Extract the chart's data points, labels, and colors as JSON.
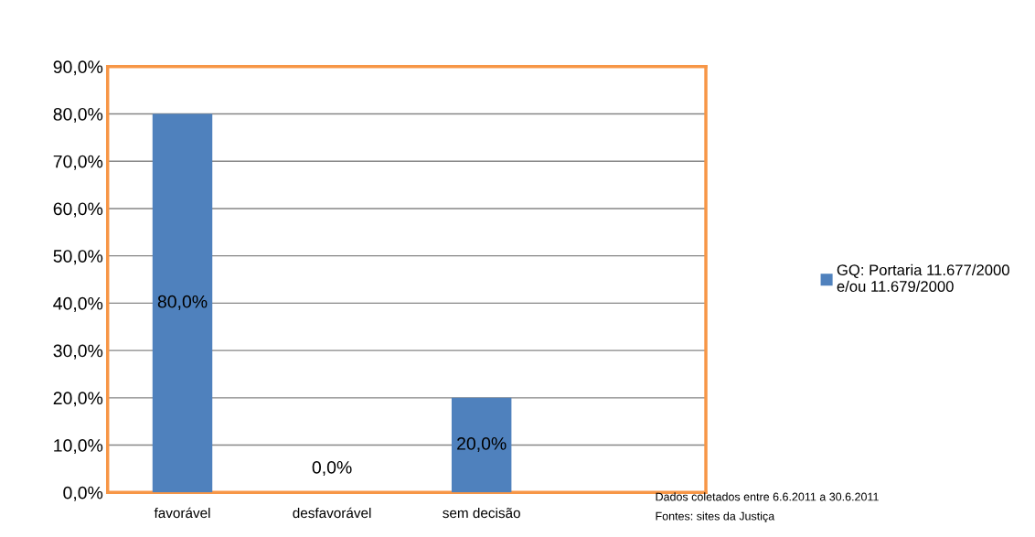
{
  "chart_data": {
    "type": "bar",
    "categories": [
      "favorável",
      "desfavorável",
      "sem decisão",
      null
    ],
    "series": [
      {
        "name": "GQ: Portaria 11.677/2000\ne/ou 11.679/2000",
        "color": "#4f81bd",
        "values": [
          80.0,
          0.0,
          20.0,
          null
        ],
        "value_labels": [
          "80,0%",
          "0,0%",
          "20,0%",
          null
        ]
      }
    ],
    "ylim": [
      0,
      90
    ],
    "yticks": [
      {
        "value": 0,
        "label": "0,0%"
      },
      {
        "value": 10,
        "label": "10,0%"
      },
      {
        "value": 20,
        "label": "20,0%"
      },
      {
        "value": 30,
        "label": "30,0%"
      },
      {
        "value": 40,
        "label": "40,0%"
      },
      {
        "value": 50,
        "label": "50,0%"
      },
      {
        "value": 60,
        "label": "60,0%"
      },
      {
        "value": 70,
        "label": "70,0%"
      },
      {
        "value": 80,
        "label": "80,0%"
      },
      {
        "value": 90,
        "label": "90,0%"
      }
    ],
    "grid": "y",
    "legend": "right",
    "annotations": [
      "Dados coletados entre 6.6.2011 a 30.6.2011",
      "Fontes: sites da Justiça"
    ]
  }
}
